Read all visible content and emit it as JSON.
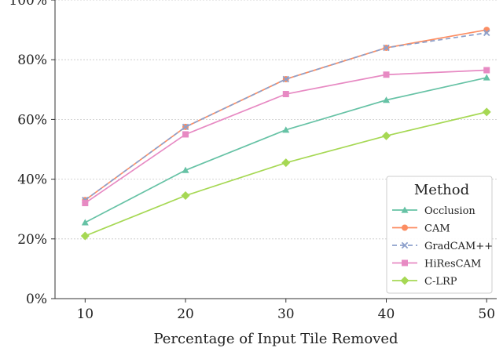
{
  "chart_data": {
    "type": "line",
    "title": "",
    "xlabel": "Percentage of Input Tile Removed",
    "ylabel": "",
    "x": [
      10,
      20,
      30,
      40,
      50
    ],
    "xticks": [
      "10",
      "20",
      "30",
      "40",
      "50"
    ],
    "yticks": [
      "0%",
      "20%",
      "40%",
      "60%",
      "80%",
      "100%"
    ],
    "ylim": [
      0,
      100
    ],
    "grid": "horizontal",
    "legend_title": "Method",
    "legend_position": "bottom-right",
    "series": [
      {
        "name": "Occlusion",
        "values": [
          25.5,
          43.0,
          56.5,
          66.5,
          74.0
        ],
        "color": "#66c2a5",
        "marker": "triangle",
        "dash": ""
      },
      {
        "name": "CAM",
        "values": [
          33.0,
          57.5,
          73.5,
          84.0,
          90.0
        ],
        "color": "#fc8d62",
        "marker": "circle",
        "dash": ""
      },
      {
        "name": "GradCAM++",
        "values": [
          33.0,
          57.5,
          73.5,
          84.0,
          89.0
        ],
        "color": "#8da0cb",
        "marker": "x",
        "dash": "6 4"
      },
      {
        "name": "HiResCAM",
        "values": [
          32.0,
          55.0,
          68.5,
          75.0,
          76.5
        ],
        "color": "#e78ac3",
        "marker": "square",
        "dash": ""
      },
      {
        "name": "C-LRP",
        "values": [
          21.0,
          34.5,
          45.5,
          54.5,
          62.5
        ],
        "color": "#a6d854",
        "marker": "diamond",
        "dash": ""
      }
    ]
  }
}
